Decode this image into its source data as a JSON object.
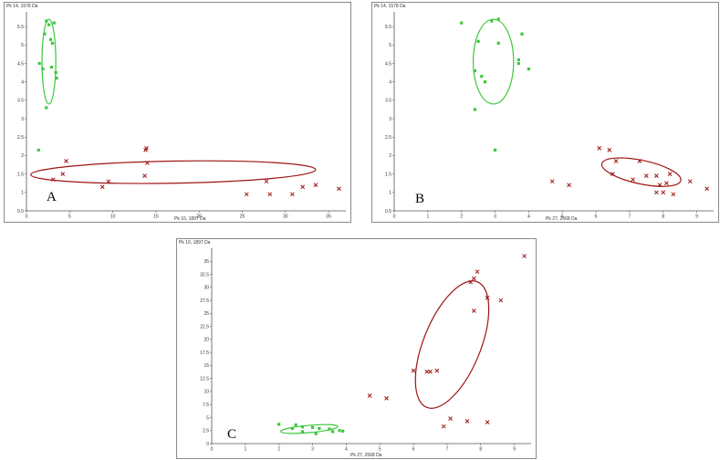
{
  "chart_data": [
    {
      "panel_label": "A",
      "type": "scatter",
      "xlabel": "Pk 10, 1897 Da",
      "ylabel": "Pk 14, 1578 Da",
      "xlim": [
        0,
        37
      ],
      "ylim": [
        0.5,
        5.9
      ],
      "xticks": [
        0,
        5,
        10,
        15,
        20,
        25,
        30,
        35
      ],
      "yticks": [
        0.5,
        1,
        1.5,
        2,
        2.5,
        3,
        3.5,
        4,
        4.5,
        5,
        5.5
      ],
      "grid": false,
      "legend": "none",
      "series": [
        {
          "marker": "square",
          "color": "#3cc83c",
          "points": [
            [
              2.3,
              5.65
            ],
            [
              2.6,
              5.55
            ],
            [
              3.2,
              5.6
            ],
            [
              2.1,
              5.3
            ],
            [
              2.8,
              5.15
            ],
            [
              3.0,
              5.05
            ],
            [
              1.5,
              4.5
            ],
            [
              1.9,
              4.35
            ],
            [
              2.9,
              4.4
            ],
            [
              3.4,
              4.25
            ],
            [
              3.5,
              4.1
            ],
            [
              2.3,
              3.3
            ],
            [
              1.4,
              2.15
            ]
          ]
        },
        {
          "marker": "cross",
          "color": "#9e1414",
          "points": [
            [
              13.9,
              2.2
            ],
            [
              13.8,
              2.15
            ],
            [
              14.0,
              1.8
            ],
            [
              4.6,
              1.85
            ],
            [
              4.2,
              1.5
            ],
            [
              3.1,
              1.35
            ],
            [
              13.7,
              1.45
            ],
            [
              9.5,
              1.3
            ],
            [
              8.8,
              1.15
            ],
            [
              27.8,
              1.3
            ],
            [
              32.0,
              1.15
            ],
            [
              33.5,
              1.2
            ],
            [
              25.5,
              0.95
            ],
            [
              28.2,
              0.95
            ],
            [
              30.8,
              0.95
            ],
            [
              36.2,
              1.1
            ]
          ]
        }
      ],
      "ellipses": [
        {
          "color": "#3cc83c",
          "center": [
            2.6,
            4.55
          ],
          "rx": 0.8,
          "ry": 1.15,
          "angle": 0
        },
        {
          "color": "#9e1414",
          "center": [
            17.0,
            1.55
          ],
          "rx": 16.5,
          "ry": 0.3,
          "angle": -1
        }
      ]
    },
    {
      "panel_label": "B",
      "type": "scatter",
      "xlabel": "Pk 27, 2568 Da",
      "ylabel": "Pk 14, 1578 Da",
      "xlim": [
        0,
        9.5
      ],
      "ylim": [
        0.5,
        5.9
      ],
      "xticks": [
        0,
        1,
        2,
        3,
        4,
        5,
        6,
        7,
        8,
        9
      ],
      "yticks": [
        0.5,
        1,
        1.5,
        2,
        2.5,
        3,
        3.5,
        4,
        4.5,
        5,
        5.5
      ],
      "grid": false,
      "legend": "none",
      "series": [
        {
          "marker": "square",
          "color": "#3cc83c",
          "points": [
            [
              2.0,
              5.6
            ],
            [
              2.9,
              5.65
            ],
            [
              3.1,
              5.7
            ],
            [
              2.5,
              5.1
            ],
            [
              3.1,
              5.05
            ],
            [
              3.8,
              5.3
            ],
            [
              3.7,
              4.6
            ],
            [
              3.7,
              4.5
            ],
            [
              4.0,
              4.35
            ],
            [
              2.4,
              4.3
            ],
            [
              2.6,
              4.15
            ],
            [
              2.7,
              4.0
            ],
            [
              2.4,
              3.25
            ],
            [
              3.0,
              2.15
            ]
          ]
        },
        {
          "marker": "cross",
          "color": "#9e1414",
          "points": [
            [
              6.1,
              2.2
            ],
            [
              6.4,
              2.15
            ],
            [
              6.6,
              1.85
            ],
            [
              7.3,
              1.85
            ],
            [
              6.5,
              1.5
            ],
            [
              7.5,
              1.45
            ],
            [
              7.8,
              1.45
            ],
            [
              8.2,
              1.5
            ],
            [
              7.1,
              1.35
            ],
            [
              4.7,
              1.3
            ],
            [
              5.2,
              1.2
            ],
            [
              7.9,
              1.2
            ],
            [
              8.1,
              1.25
            ],
            [
              7.8,
              1.0
            ],
            [
              8.0,
              1.0
            ],
            [
              8.3,
              0.95
            ],
            [
              8.8,
              1.3
            ],
            [
              9.3,
              1.1
            ]
          ]
        }
      ],
      "ellipses": [
        {
          "color": "#3cc83c",
          "center": [
            2.95,
            4.55
          ],
          "rx": 0.6,
          "ry": 1.15,
          "angle": 0
        },
        {
          "color": "#9e1414",
          "center": [
            7.35,
            1.55
          ],
          "rx": 1.2,
          "ry": 0.32,
          "angle": 12
        }
      ]
    },
    {
      "panel_label": "C",
      "type": "scatter",
      "xlabel": "Pk 27, 2568 Da",
      "ylabel": "Pk 10, 1897 Da",
      "xlim": [
        0,
        9.5
      ],
      "ylim": [
        0,
        37.5
      ],
      "xticks": [
        0,
        1,
        2,
        3,
        4,
        5,
        6,
        7,
        8,
        9
      ],
      "yticks": [
        0,
        2.5,
        5,
        7.5,
        10,
        12.5,
        15,
        17.5,
        20,
        22.5,
        25,
        27.5,
        30,
        32.5,
        35
      ],
      "grid": false,
      "legend": "none",
      "series": [
        {
          "marker": "square",
          "color": "#3cc83c",
          "points": [
            [
              2.0,
              3.7
            ],
            [
              2.5,
              3.6
            ],
            [
              2.7,
              3.2
            ],
            [
              3.0,
              3.1
            ],
            [
              2.4,
              2.9
            ],
            [
              2.7,
              2.3
            ],
            [
              3.2,
              2.9
            ],
            [
              3.5,
              2.8
            ],
            [
              3.6,
              2.3
            ],
            [
              3.8,
              2.5
            ],
            [
              3.9,
              2.4
            ],
            [
              3.1,
              1.9
            ]
          ]
        },
        {
          "marker": "cross",
          "color": "#9e1414",
          "points": [
            [
              9.3,
              36.0
            ],
            [
              7.9,
              33.0
            ],
            [
              7.7,
              31.0
            ],
            [
              7.8,
              31.7
            ],
            [
              8.2,
              28.0
            ],
            [
              8.6,
              27.5
            ],
            [
              7.8,
              25.5
            ],
            [
              6.0,
              14.0
            ],
            [
              6.4,
              13.8
            ],
            [
              6.5,
              13.8
            ],
            [
              6.7,
              14.0
            ],
            [
              4.7,
              9.2
            ],
            [
              5.2,
              8.7
            ],
            [
              7.1,
              4.8
            ],
            [
              7.6,
              4.3
            ],
            [
              8.2,
              4.1
            ],
            [
              6.9,
              3.3
            ]
          ]
        }
      ],
      "ellipses": [
        {
          "color": "#3cc83c",
          "center": [
            2.9,
            2.8
          ],
          "rx": 0.85,
          "ry": 0.7,
          "angle": -5
        },
        {
          "color": "#9e1414",
          "center": [
            7.15,
            19.0
          ],
          "rx": 0.85,
          "ry": 13.0,
          "angle": 22
        }
      ]
    }
  ]
}
